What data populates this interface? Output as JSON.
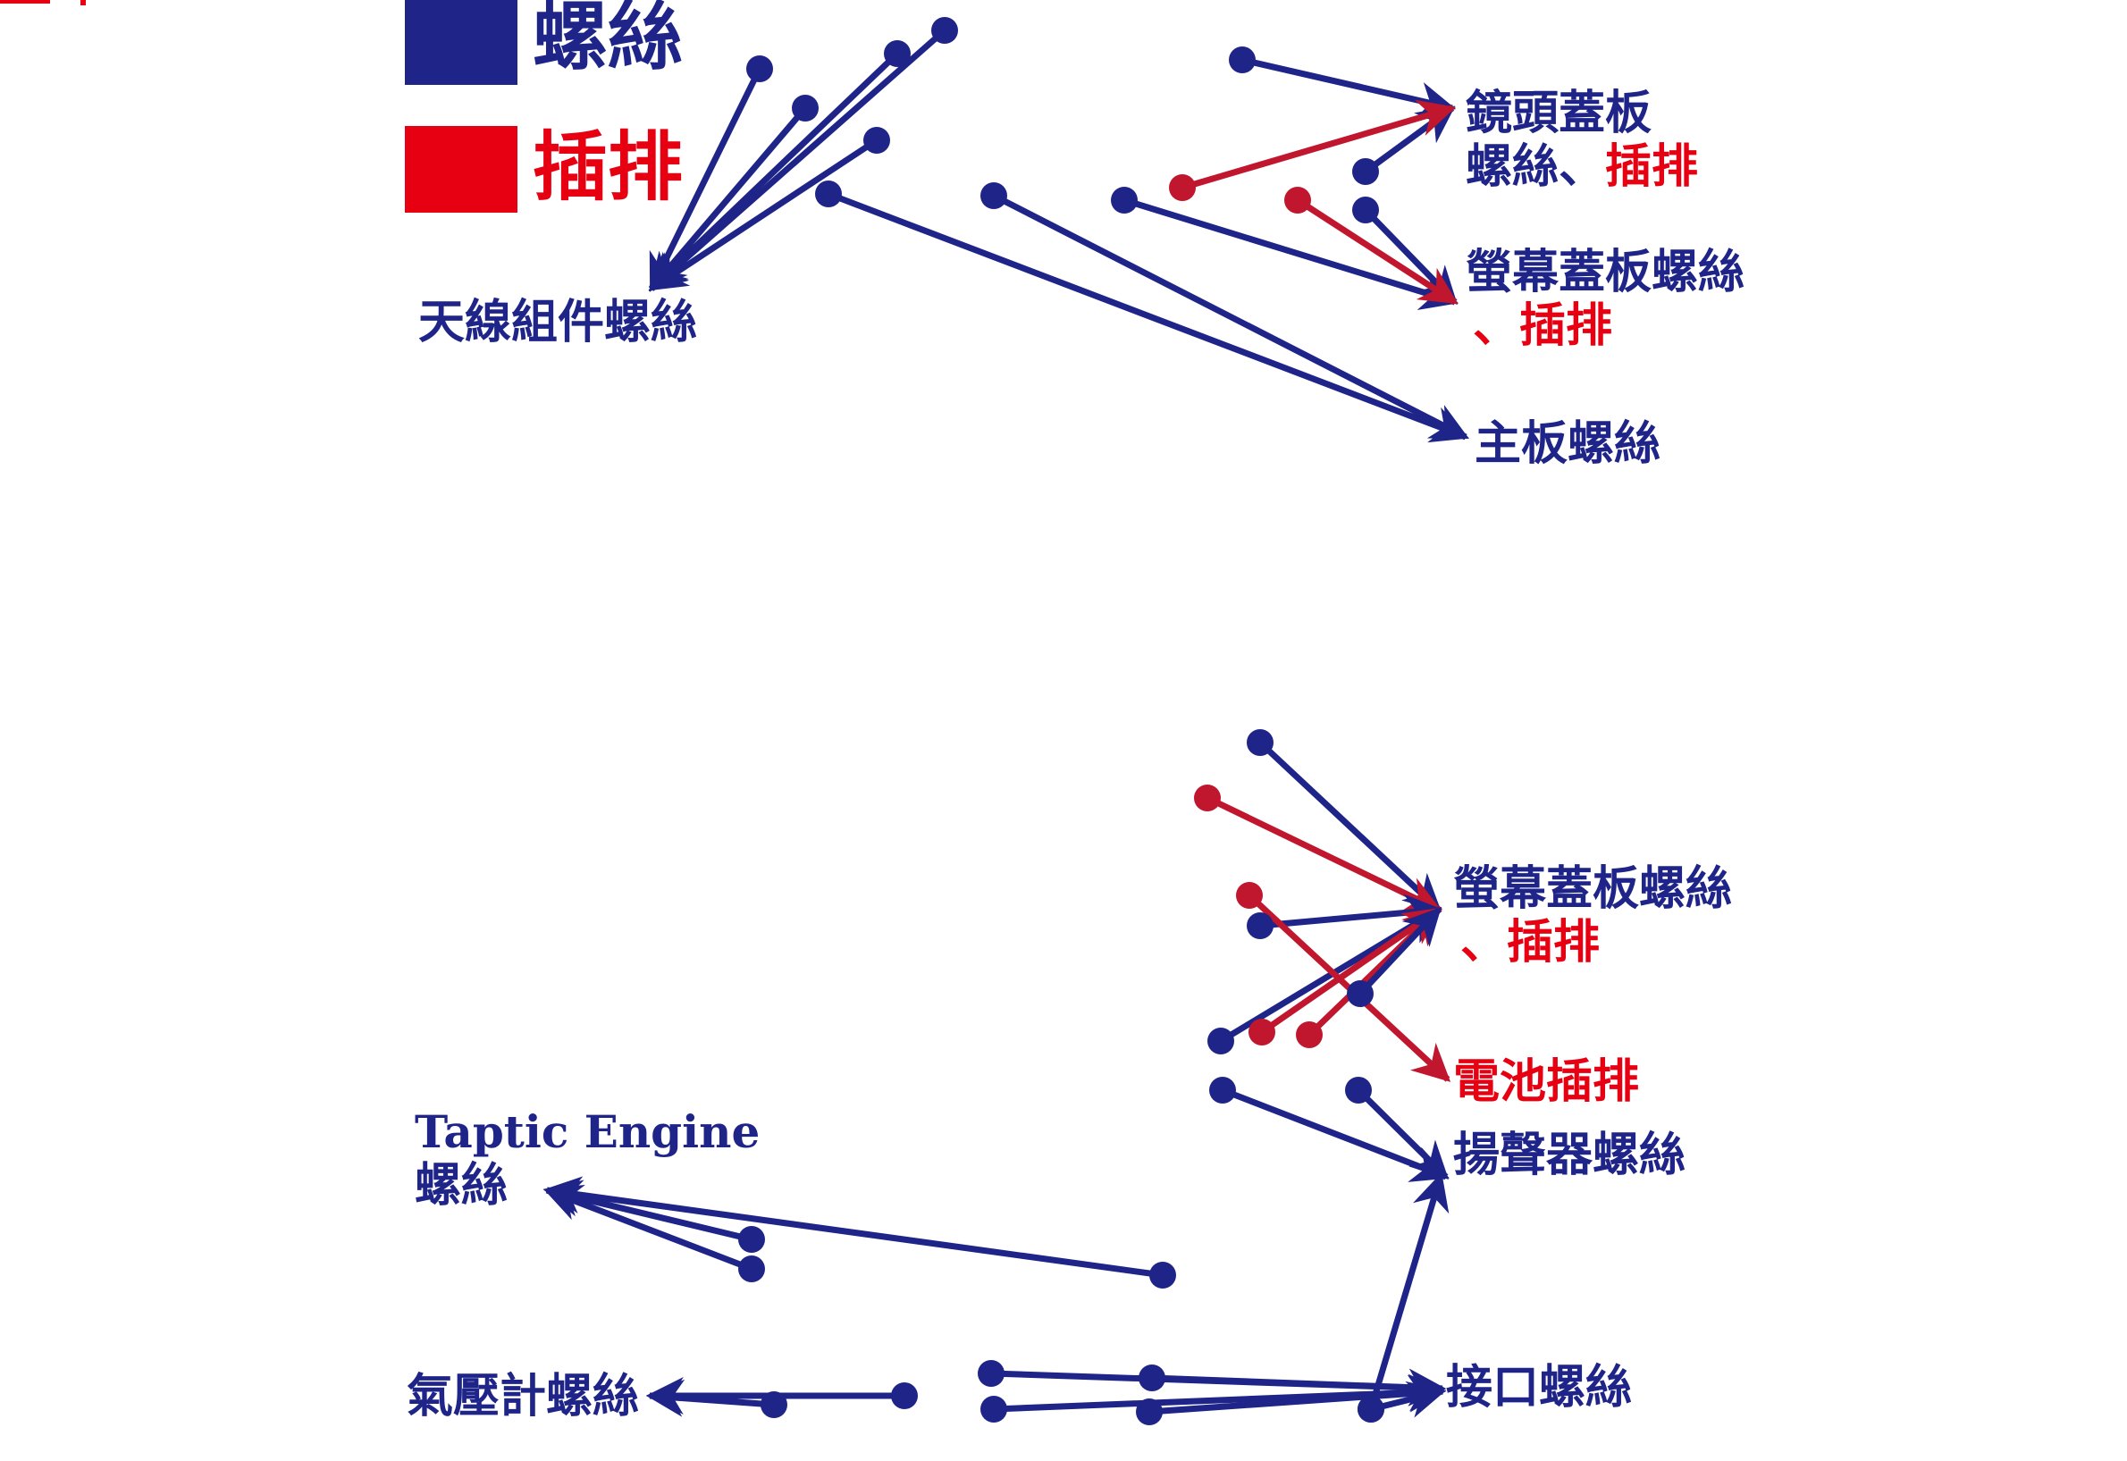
{
  "colors": {
    "screw": "#1f2489",
    "connector": "#e60012",
    "connector_line": "#c0162e",
    "background": "#ffffff"
  },
  "legend": {
    "items": [
      {
        "label": "螺絲",
        "color": "screw"
      },
      {
        "label": "插排",
        "color": "connector"
      }
    ]
  },
  "labels": {
    "antenna": "天線組件螺絲",
    "camera_cover_a": "鏡頭蓋板",
    "camera_cover_b": "螺絲、",
    "camera_cover_c": "插排",
    "screen_cover_top_a": "螢幕蓋板螺絲",
    "screen_cover_top_b": "、插排",
    "mainboard": "主板螺絲",
    "screen_cover_bottom_a": "螢幕蓋板螺絲",
    "screen_cover_bottom_b": "、插排",
    "battery": "電池插排",
    "speaker": "揚聲器螺絲",
    "taptic_a": "Taptic Engine",
    "taptic_b": "螺絲",
    "barometer": "氣壓計螺絲",
    "port": "接口螺絲"
  }
}
